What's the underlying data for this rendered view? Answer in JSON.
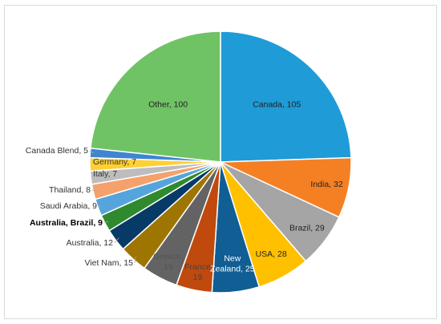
{
  "chart_data": {
    "type": "pie",
    "title": "",
    "slices": [
      {
        "label": "Canada",
        "value": 105,
        "color": "#1f9bd7"
      },
      {
        "label": "India",
        "value": 32,
        "color": "#f58024"
      },
      {
        "label": "Brazil",
        "value": 29,
        "color": "#a5a5a5"
      },
      {
        "label": "USA",
        "value": 28,
        "color": "#ffc000"
      },
      {
        "label": "New Zealand",
        "value": 25,
        "color": "#105e93"
      },
      {
        "label": "France",
        "value": 19,
        "color": "#c0490e"
      },
      {
        "label": "Greece",
        "value": 19,
        "color": "#636363"
      },
      {
        "label": "Viet Nam",
        "value": 15,
        "color": "#9e7500"
      },
      {
        "label": "Australia",
        "value": 12,
        "color": "#073a66"
      },
      {
        "label": "Australia, Brazil",
        "value": 9,
        "color": "#2f8a2f"
      },
      {
        "label": "Saudi Arabia",
        "value": 9,
        "color": "#55a5dc"
      },
      {
        "label": "Thailand",
        "value": 8,
        "color": "#f4a16c"
      },
      {
        "label": "Italy",
        "value": 7,
        "color": "#bdbdbd"
      },
      {
        "label": "Germany",
        "value": 7,
        "color": "#ffd033"
      },
      {
        "label": "Canada Blend",
        "value": 5,
        "color": "#3f85d0"
      },
      {
        "label": "Other",
        "value": 100,
        "color": "#70c365"
      }
    ]
  }
}
